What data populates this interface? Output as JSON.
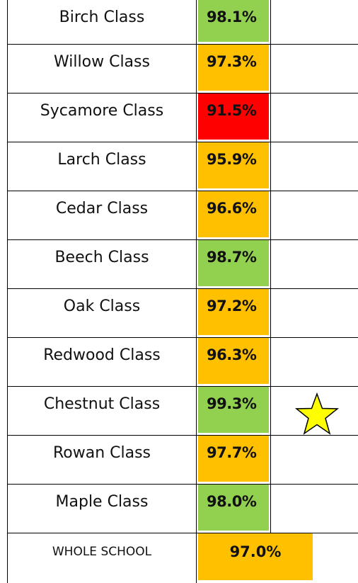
{
  "table": {
    "rows": [
      {
        "name": "Birch Class",
        "value": "98.1%",
        "color": "#92d050"
      },
      {
        "name": "Willow Class",
        "value": "97.3%",
        "color": "#ffc000"
      },
      {
        "name": "Sycamore Class",
        "value": "91.5%",
        "color": "#ff0000"
      },
      {
        "name": "Larch Class",
        "value": "95.9%",
        "color": "#ffc000"
      },
      {
        "name": "Cedar Class",
        "value": "96.6%",
        "color": "#ffc000"
      },
      {
        "name": "Beech Class",
        "value": "98.7%",
        "color": "#92d050"
      },
      {
        "name": "Oak Class",
        "value": "97.2%",
        "color": "#ffc000"
      },
      {
        "name": "Redwood Class",
        "value": "96.3%",
        "color": "#ffc000"
      },
      {
        "name": "Chestnut Class",
        "value": "99.3%",
        "color": "#92d050"
      },
      {
        "name": "Rowan Class",
        "value": "97.7%",
        "color": "#ffc000"
      },
      {
        "name": "Maple Class",
        "value": "98.0%",
        "color": "#92d050"
      }
    ],
    "total": {
      "name": "WHOLE SCHOOL",
      "value": "97.0%",
      "color": "#ffc000"
    }
  }
}
